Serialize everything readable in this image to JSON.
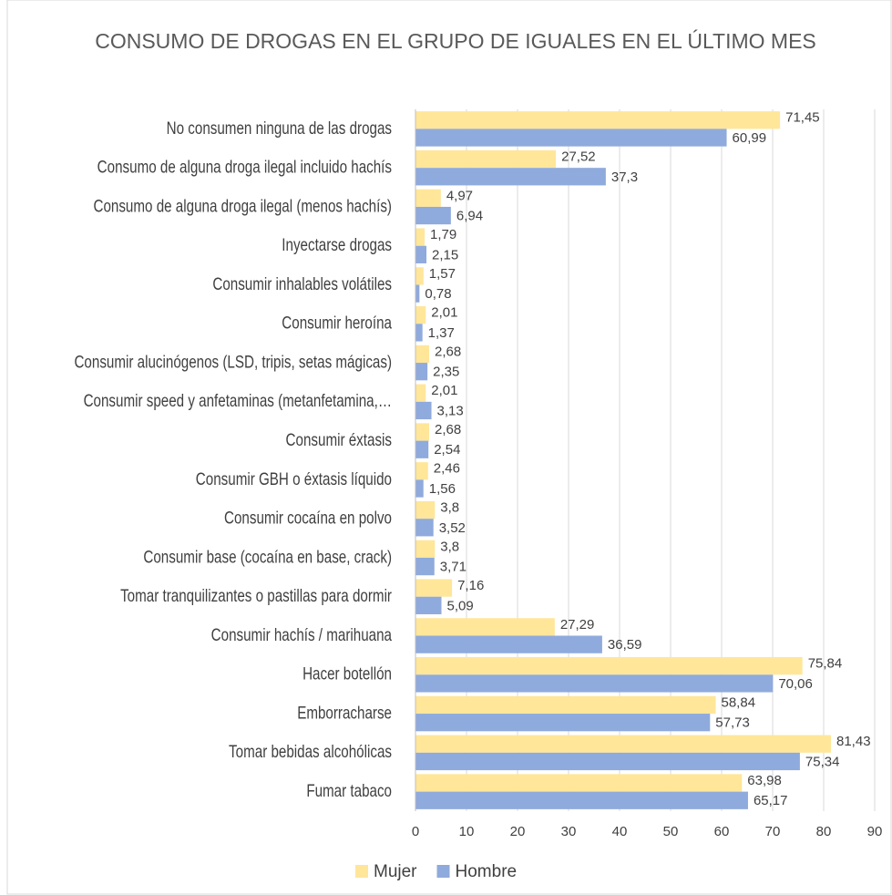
{
  "chart_data": {
    "type": "bar",
    "orientation": "horizontal",
    "title": "CONSUMO DE DROGAS EN EL GRUPO DE IGUALES EN EL ÚLTIMO MES",
    "categories": [
      "No consumen ninguna de las drogas",
      "Consumo de alguna droga ilegal incluido hachís",
      "Consumo de alguna droga ilegal (menos hachís)",
      "Inyectarse drogas",
      "Consumir inhalables volátiles",
      "Consumir heroína",
      "Consumir alucinógenos (LSD, tripis, setas mágicas)",
      "Consumir speed y anfetaminas (metanfetamina,…",
      "Consumir éxtasis",
      "Consumir GBH o éxtasis líquido",
      "Consumir cocaína en polvo",
      "Consumir base (cocaína en base, crack)",
      "Tomar tranquilizantes o pastillas para dormir",
      "Consumir hachís / marihuana",
      "Hacer botellón",
      "Emborracharse",
      "Tomar bebidas alcohólicas",
      "Fumar tabaco"
    ],
    "series": [
      {
        "name": "Mujer",
        "color": "#ffe699",
        "values": [
          71.45,
          27.52,
          4.97,
          1.79,
          1.57,
          2.01,
          2.68,
          2.01,
          2.68,
          2.46,
          3.8,
          3.8,
          7.16,
          27.29,
          75.84,
          58.84,
          81.43,
          63.98
        ],
        "value_labels": [
          "71,45",
          "27,52",
          "4,97",
          "1,79",
          "1,57",
          "2,01",
          "2,68",
          "2,01",
          "2,68",
          "2,46",
          "3,8",
          "3,8",
          "7,16",
          "27,29",
          "75,84",
          "58,84",
          "81,43",
          "63,98"
        ]
      },
      {
        "name": "Hombre",
        "color": "#8faadc",
        "values": [
          60.99,
          37.3,
          6.94,
          2.15,
          0.78,
          1.37,
          2.35,
          3.13,
          2.54,
          1.56,
          3.52,
          3.71,
          5.09,
          36.59,
          70.06,
          57.73,
          75.34,
          65.17
        ],
        "value_labels": [
          "60,99",
          "37,3",
          "6,94",
          "2,15",
          "0,78",
          "1,37",
          "2,35",
          "3,13",
          "2,54",
          "1,56",
          "3,52",
          "3,71",
          "5,09",
          "36,59",
          "70,06",
          "57,73",
          "75,34",
          "65,17"
        ]
      }
    ],
    "xlim": [
      0,
      90
    ],
    "xticks": [
      0,
      10,
      20,
      30,
      40,
      50,
      60,
      70,
      80,
      90
    ],
    "grid": true,
    "legend": "bottom"
  }
}
